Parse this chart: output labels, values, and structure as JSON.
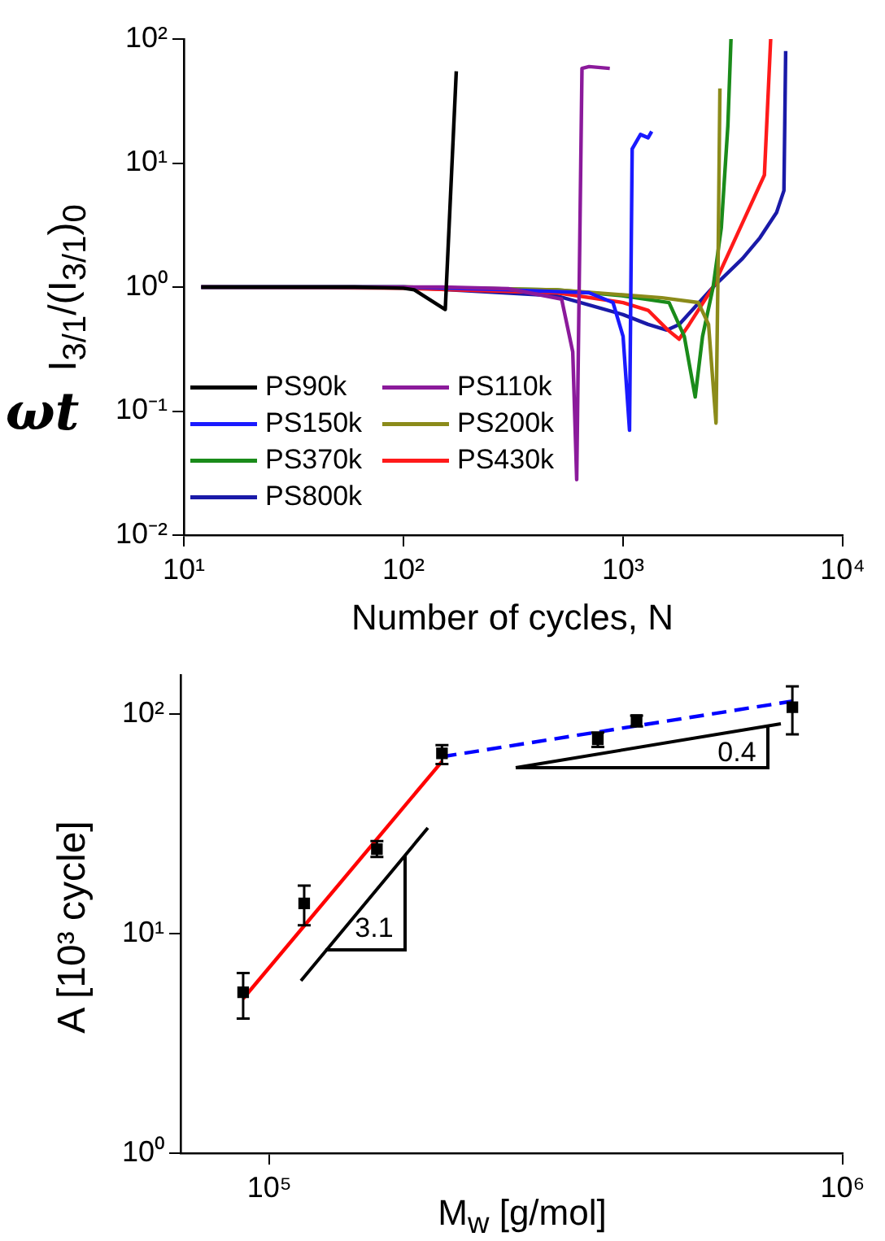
{
  "chart_data": [
    {
      "type": "line",
      "xlabel": "Number of cycles, N",
      "ylabel": "I$_{3/1}$/(I$_{3/1}$)$_{0}$",
      "annotations": [
        "ωt"
      ],
      "log": "xy",
      "xlim": [
        10,
        10000
      ],
      "xticks": [
        {
          "value": 10,
          "label": "10¹"
        },
        {
          "value": 100,
          "label": "10²"
        },
        {
          "value": 1000,
          "label": "10³"
        },
        {
          "value": 10000,
          "label": "10⁴"
        }
      ],
      "ylim": [
        0.01,
        100
      ],
      "yticks": [
        {
          "value": 0.01,
          "label": "10⁻²"
        },
        {
          "value": 0.1,
          "label": "10⁻¹"
        },
        {
          "value": 1,
          "label": "10⁰"
        },
        {
          "value": 10,
          "label": "10¹"
        },
        {
          "value": 100,
          "label": "10²"
        }
      ],
      "legend": "bottom left",
      "marker": "none",
      "grid": false,
      "series": [
        {
          "name": "PS90k",
          "color": "#000000",
          "x": [
            12,
            30,
            60,
            100,
            112,
            155,
            174
          ],
          "values": [
            1,
            1,
            1,
            0.98,
            0.95,
            0.66,
            55
          ]
        },
        {
          "name": "PS110k",
          "color": "#8b1a9b",
          "x": [
            12,
            50,
            150,
            300,
            525,
            590,
            615,
            650,
            700,
            870
          ],
          "values": [
            1,
            1,
            1,
            0.97,
            0.8,
            0.3,
            0.028,
            58,
            60,
            58
          ]
        },
        {
          "name": "PS150k",
          "color": "#1a1aff",
          "x": [
            12,
            100,
            300,
            700,
            900,
            1000,
            1070,
            1100,
            1200,
            1300,
            1350
          ],
          "values": [
            1,
            1,
            0.95,
            0.9,
            0.75,
            0.4,
            0.07,
            13,
            17,
            16,
            18
          ]
        },
        {
          "name": "PS200k",
          "color": "#8b8b1a",
          "x": [
            12,
            100,
            500,
            1500,
            2200,
            2450,
            2650,
            2700,
            2760
          ],
          "values": [
            1,
            1,
            0.95,
            0.82,
            0.75,
            0.5,
            0.08,
            1,
            40
          ]
        },
        {
          "name": "PS370k",
          "color": "#1a8b1a",
          "x": [
            12,
            100,
            500,
            1000,
            1620,
            1900,
            2130,
            2300,
            2570,
            2800,
            3000,
            3100
          ],
          "values": [
            1,
            1,
            0.95,
            0.85,
            0.75,
            0.4,
            0.13,
            0.4,
            1,
            3,
            20,
            100
          ]
        },
        {
          "name": "PS430k",
          "color": "#ff1a1a",
          "x": [
            12,
            100,
            500,
            1000,
            1300,
            1600,
            1800,
            2000,
            2570,
            3500,
            4400,
            4700
          ],
          "values": [
            1,
            0.98,
            0.9,
            0.75,
            0.65,
            0.45,
            0.38,
            0.5,
            1,
            3.3,
            8,
            100
          ]
        },
        {
          "name": "PS800k",
          "color": "#1a1aa8",
          "x": [
            12,
            100,
            500,
            1000,
            1300,
            1580,
            1800,
            2570,
            3500,
            4200,
            5000,
            5400,
            5500
          ],
          "values": [
            1,
            1,
            0.85,
            0.6,
            0.5,
            0.45,
            0.5,
            1,
            1.7,
            2.5,
            4,
            6,
            80
          ]
        }
      ]
    },
    {
      "type": "scatter",
      "xlabel": "M$_{w}$ [g/mol]",
      "ylabel": "A [10³ cycle]",
      "annotations": [
        "3.1",
        "0.4"
      ],
      "log": "xy",
      "xlim": [
        70000,
        1000000
      ],
      "xticks": [
        {
          "value": 100000,
          "label": "10⁵"
        },
        {
          "value": 1000000,
          "label": "10⁶"
        }
      ],
      "ylim": [
        1,
        150
      ],
      "yticks": [
        {
          "value": 1,
          "label": "10⁰"
        },
        {
          "value": 10,
          "label": "10¹"
        },
        {
          "value": 100,
          "label": "10²"
        }
      ],
      "legend": false,
      "grid": false,
      "series": [
        {
          "type": "scatter",
          "color": "#000000",
          "marker": "square",
          "x": [
            90000,
            115000,
            154000,
            200000,
            374000,
            437000,
            817000
          ],
          "values": [
            5.4,
            13.7,
            24.2,
            66,
            76.5,
            93.5,
            107
          ],
          "errors": [
            [
              4.1,
              6.6
            ],
            [
              10.9,
              16.5
            ],
            [
              22.3,
              26.3
            ],
            [
              59,
              72
            ],
            [
              70.5,
              82
            ],
            [
              87.5,
              98
            ],
            [
              80.5,
              133
            ]
          ]
        },
        {
          "type": "line",
          "color": "#ff0000",
          "marker": "none",
          "x": [
            90000,
            200000
          ],
          "values": [
            5.05,
            60.6
          ]
        },
        {
          "type": "line",
          "color": "#0000ff",
          "marker": "none",
          "line_style": "dashed",
          "x": [
            200000,
            817000
          ],
          "values": [
            63.7,
            114
          ]
        }
      ]
    }
  ]
}
